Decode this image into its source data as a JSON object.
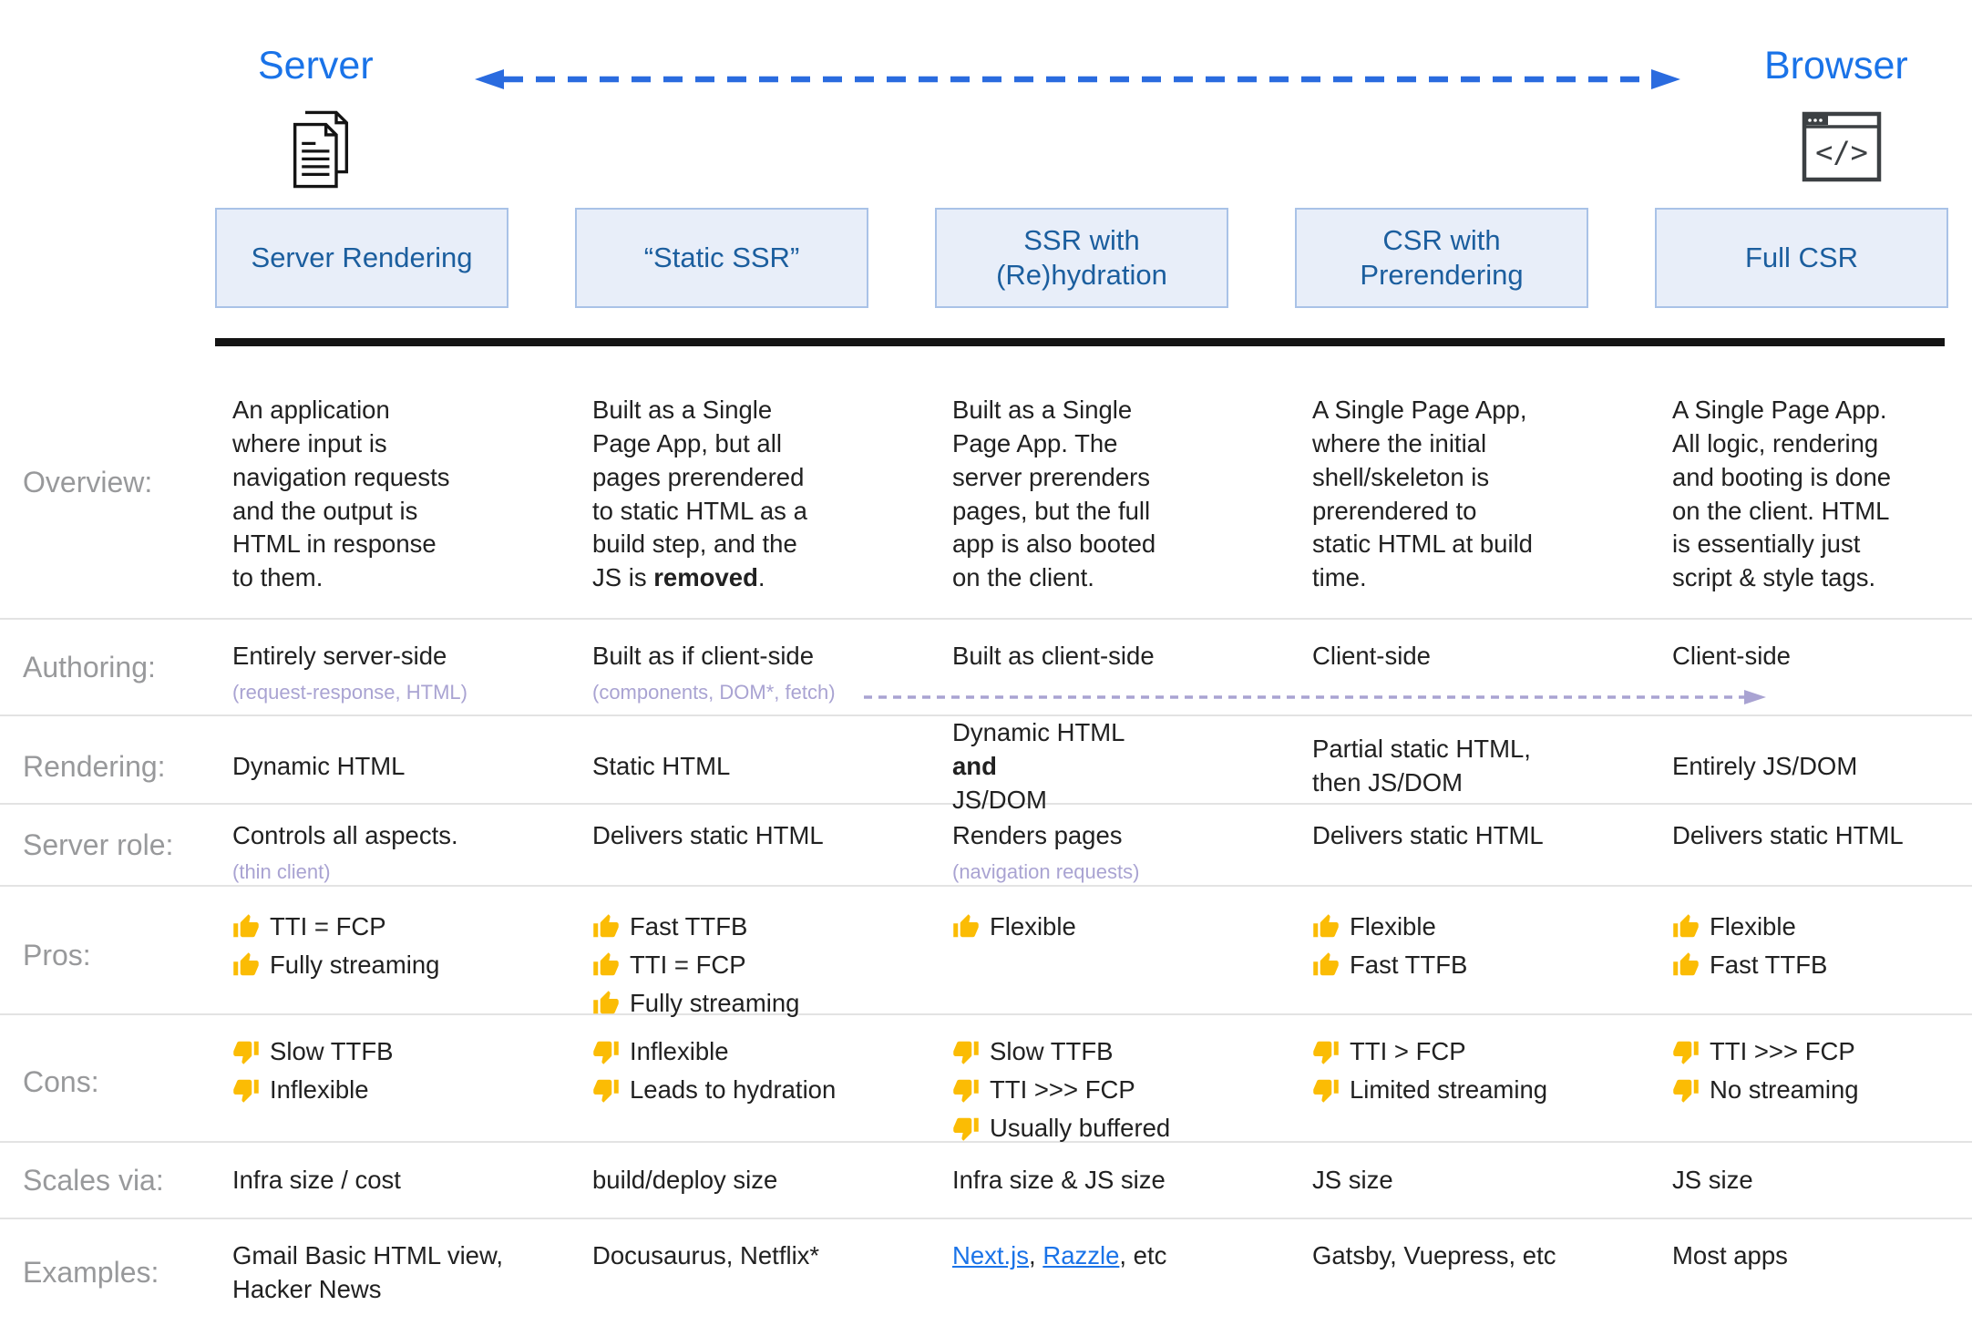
{
  "header": {
    "server_label": "Server",
    "browser_label": "Browser"
  },
  "row_labels": {
    "overview": "Overview:",
    "authoring": "Authoring:",
    "rendering": "Rendering:",
    "server_role": "Server role:",
    "pros": "Pros:",
    "cons": "Cons:",
    "scales": "Scales via:",
    "examples": "Examples:"
  },
  "colors": {
    "accent_blue": "#1a73e8",
    "box_text_blue": "#1b5e9e",
    "box_fill": "#e8eef9",
    "box_border": "#a9c2e7",
    "subnote_purple": "#a9a3d2",
    "label_gray": "#98999b",
    "thumb_gold": "#fbbc04"
  },
  "columns": [
    {
      "header": "Server Rendering",
      "overview": [
        {
          "t": "An application\nwhere input is\nnavigation requests\nand the output is\nHTML in response\nto them."
        }
      ],
      "authoring": {
        "main": "Entirely server-side",
        "sub": "(request-response, HTML)"
      },
      "rendering": [
        {
          "t": "Dynamic HTML"
        }
      ],
      "server_role": {
        "main": "Controls all aspects.",
        "sub": "(thin client)"
      },
      "pros": [
        "TTI = FCP",
        "Fully streaming"
      ],
      "cons": [
        "Slow TTFB",
        "Inflexible"
      ],
      "scales": "Infra size / cost",
      "examples": [
        {
          "t": "Gmail Basic HTML view,\nHacker News"
        }
      ]
    },
    {
      "header": "“Static SSR”",
      "overview": [
        {
          "t": "Built as a Single\nPage App, but all\npages prerendered\nto static HTML as a\nbuild step, and the\nJS is "
        },
        {
          "t": "removed",
          "b": true
        },
        {
          "t": "."
        }
      ],
      "authoring": {
        "main": "Built as if client-side",
        "sub": "(components, DOM*, fetch)"
      },
      "rendering": [
        {
          "t": "Static HTML"
        }
      ],
      "server_role": {
        "main": "Delivers static HTML"
      },
      "pros": [
        "Fast TTFB",
        "TTI = FCP",
        "Fully streaming"
      ],
      "cons": [
        "Inflexible",
        "Leads to hydration"
      ],
      "scales": "build/deploy size",
      "examples": [
        {
          "t": "Docusaurus, Netflix*"
        }
      ]
    },
    {
      "header": "SSR with\n(Re)hydration",
      "overview": [
        {
          "t": "Built as a Single\nPage App. The\nserver prerenders\npages, but the full\napp is also booted\non the client."
        }
      ],
      "authoring": {
        "main": "Built as client-side"
      },
      "rendering": [
        {
          "t": "Dynamic HTML\n"
        },
        {
          "t": "and",
          "b": true
        },
        {
          "t": " JS/DOM"
        }
      ],
      "server_role": {
        "main": "Renders pages",
        "sub": "(navigation requests)"
      },
      "pros": [
        "Flexible"
      ],
      "cons": [
        "Slow TTFB",
        "TTI >>> FCP",
        "Usually buffered"
      ],
      "scales": "Infra size & JS size",
      "examples": [
        {
          "t": "Next.js",
          "link": true
        },
        {
          "t": ", "
        },
        {
          "t": "Razzle",
          "link": true
        },
        {
          "t": ", etc"
        }
      ]
    },
    {
      "header": "CSR with\nPrerendering",
      "overview": [
        {
          "t": "A Single Page App,\nwhere the initial\nshell/skeleton is\nprerendered to\nstatic HTML at build\ntime."
        }
      ],
      "authoring": {
        "main": "Client-side"
      },
      "rendering": [
        {
          "t": "Partial static HTML,\nthen JS/DOM"
        }
      ],
      "server_role": {
        "main": "Delivers static HTML"
      },
      "pros": [
        "Flexible",
        "Fast TTFB"
      ],
      "cons": [
        "TTI > FCP",
        "Limited streaming"
      ],
      "scales": "JS size",
      "examples": [
        {
          "t": "Gatsby, Vuepress, etc"
        }
      ]
    },
    {
      "header": "Full CSR",
      "overview": [
        {
          "t": "A Single Page App.\nAll logic, rendering\nand booting is done\non the client. HTML\nis essentially just\nscript & style tags."
        }
      ],
      "authoring": {
        "main": "Client-side"
      },
      "rendering": [
        {
          "t": "Entirely JS/DOM"
        }
      ],
      "server_role": {
        "main": "Delivers static HTML"
      },
      "pros": [
        "Flexible",
        "Fast TTFB"
      ],
      "cons": [
        "TTI >>> FCP",
        "No streaming"
      ],
      "scales": "JS size",
      "examples": [
        {
          "t": "Most apps"
        }
      ]
    }
  ]
}
